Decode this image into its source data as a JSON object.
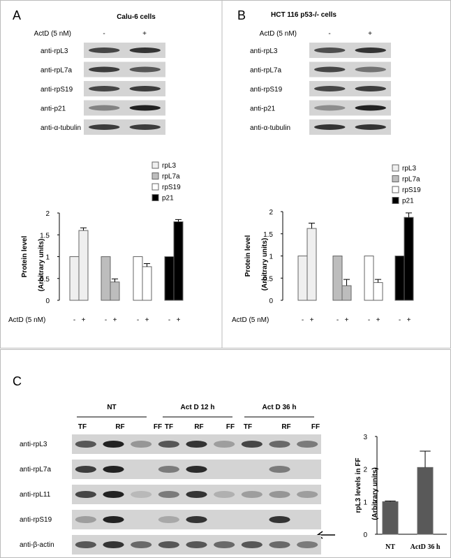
{
  "panels": [
    {
      "letter": "A",
      "title": "Calu-6 cells",
      "treatment": "ActD (5 nM)",
      "lanes": [
        "-",
        "+"
      ],
      "blots": [
        "anti-rpL3",
        "anti-rpL7a",
        "anti-rpS19",
        "anti-p21",
        "anti-α-tubulin"
      ]
    },
    {
      "letter": "B",
      "title": "HCT 116 p53-/- cells",
      "treatment": "ActD (5 nM)",
      "lanes": [
        "-",
        "+"
      ],
      "blots": [
        "anti-rpL3",
        "anti-rpL7a",
        "anti-rpS19",
        "anti-p21",
        "anti-α-tubulin"
      ]
    },
    {
      "letter": "C",
      "groups": [
        "NT",
        "Act D 12 h",
        "Act D 36 h"
      ],
      "fractions": [
        "TF",
        "RF",
        "FF"
      ],
      "blots": [
        "anti-rpL3",
        "anti-rpL7a",
        "anti-rpL11",
        "anti-rpS19",
        "anti-β-actin"
      ]
    }
  ],
  "chart_data": [
    {
      "type": "bar",
      "ylabel": [
        "Protein level",
        "(Arbitrary units)"
      ],
      "xlabel": "ActD (5 nM)",
      "categories": [
        "-",
        "+"
      ],
      "ylim": [
        0,
        2
      ],
      "yticks": [
        0,
        0.5,
        1,
        1.5,
        2
      ],
      "series": [
        {
          "name": "rpL3",
          "color": "#efefef",
          "values": [
            1,
            1.6
          ],
          "errors": [
            null,
            0.06
          ]
        },
        {
          "name": "rpL7a",
          "color": "#bdbdbd",
          "values": [
            1,
            0.42
          ],
          "errors": [
            null,
            0.07
          ]
        },
        {
          "name": "rpS19",
          "color": "#ffffff",
          "values": [
            1,
            0.77
          ],
          "errors": [
            null,
            0.07
          ]
        },
        {
          "name": "p21",
          "color": "#000000",
          "values": [
            1,
            1.8
          ],
          "errors": [
            null,
            0.05
          ]
        }
      ]
    },
    {
      "type": "bar",
      "ylabel": [
        "Protein level",
        "(Arbitrary units)"
      ],
      "xlabel": "ActD (5 nM)",
      "categories": [
        "-",
        "+"
      ],
      "ylim": [
        0,
        2
      ],
      "yticks": [
        0,
        0.5,
        1,
        1.5,
        2
      ],
      "series": [
        {
          "name": "rpL3",
          "color": "#efefef",
          "values": [
            1,
            1.62
          ],
          "errors": [
            null,
            0.12
          ]
        },
        {
          "name": "rpL7a",
          "color": "#bdbdbd",
          "values": [
            1,
            0.33
          ],
          "errors": [
            null,
            0.14
          ]
        },
        {
          "name": "rpS19",
          "color": "#ffffff",
          "values": [
            1,
            0.4
          ],
          "errors": [
            null,
            0.07
          ]
        },
        {
          "name": "p21",
          "color": "#000000",
          "values": [
            1,
            1.87
          ],
          "errors": [
            null,
            0.1
          ]
        }
      ]
    },
    {
      "type": "bar",
      "ylabel": [
        "rpL3 levels in FF",
        "(Arbitrary units)"
      ],
      "categories": [
        "NT",
        "ActD 36 h"
      ],
      "values": [
        1,
        2.05
      ],
      "errors": [
        0.02,
        0.5
      ],
      "color": "#595959",
      "ylim": [
        0,
        3
      ],
      "yticks": [
        0,
        1,
        2,
        3
      ]
    }
  ]
}
